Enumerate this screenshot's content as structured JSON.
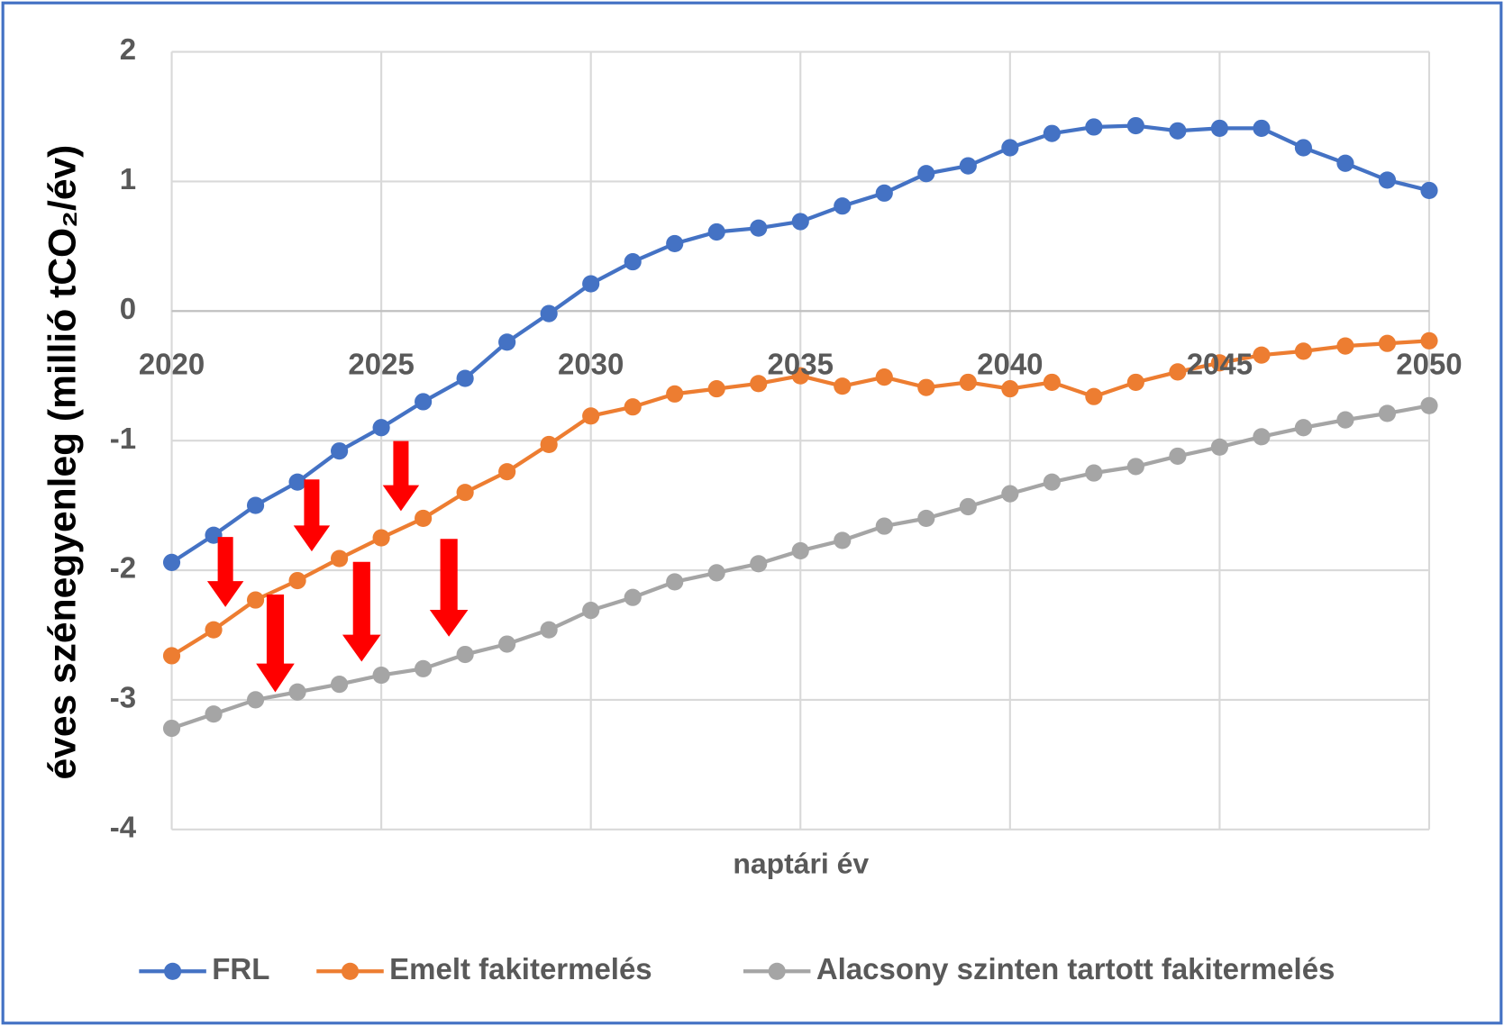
{
  "chart_data": {
    "type": "line",
    "y_label": "éves szénegyenleg (millió tCO₂/év)",
    "x_label": "naptári év",
    "x": [
      2020,
      2021,
      2022,
      2023,
      2024,
      2025,
      2026,
      2027,
      2028,
      2029,
      2030,
      2031,
      2032,
      2033,
      2034,
      2035,
      2036,
      2037,
      2038,
      2039,
      2040,
      2041,
      2042,
      2043,
      2044,
      2045,
      2046,
      2047,
      2048,
      2049,
      2050
    ],
    "series": [
      {
        "name": "FRL",
        "color": "#4472c4",
        "values": [
          -1.94,
          -1.73,
          -1.5,
          -1.32,
          -1.08,
          -0.9,
          -0.7,
          -0.52,
          -0.24,
          -0.02,
          0.21,
          0.38,
          0.52,
          0.61,
          0.64,
          0.69,
          0.81,
          0.91,
          1.06,
          1.12,
          1.26,
          1.37,
          1.42,
          1.43,
          1.39,
          1.41,
          1.41,
          1.26,
          1.14,
          1.01,
          0.93
        ]
      },
      {
        "name": "Emelt fakitermelés",
        "color": "#ed7d31",
        "values": [
          -2.66,
          -2.46,
          -2.23,
          -2.08,
          -1.91,
          -1.75,
          -1.6,
          -1.4,
          -1.24,
          -1.03,
          -0.81,
          -0.74,
          -0.64,
          -0.6,
          -0.56,
          -0.5,
          -0.58,
          -0.51,
          -0.59,
          -0.55,
          -0.6,
          -0.55,
          -0.66,
          -0.55,
          -0.47,
          -0.4,
          -0.34,
          -0.31,
          -0.27,
          -0.25,
          -0.23
        ]
      },
      {
        "name": "Alacsony szinten tartott fakitermelés",
        "color": "#a5a5a5",
        "values": [
          -3.22,
          -3.11,
          -3.0,
          -2.94,
          -2.88,
          -2.81,
          -2.76,
          -2.65,
          -2.57,
          -2.46,
          -2.31,
          -2.21,
          -2.09,
          -2.02,
          -1.95,
          -1.85,
          -1.77,
          -1.66,
          -1.6,
          -1.51,
          -1.41,
          -1.32,
          -1.25,
          -1.2,
          -1.12,
          -1.05,
          -0.97,
          -0.9,
          -0.84,
          -0.79,
          -0.73
        ]
      }
    ],
    "xlim": [
      2020,
      2050
    ],
    "xticks": [
      2020,
      2025,
      2030,
      2035,
      2040,
      2045,
      2050
    ],
    "ylim": [
      -4,
      2
    ],
    "yticks": [
      -4,
      -3,
      -2,
      -1,
      0,
      1,
      2
    ],
    "grid": true,
    "legend": "bottom"
  }
}
